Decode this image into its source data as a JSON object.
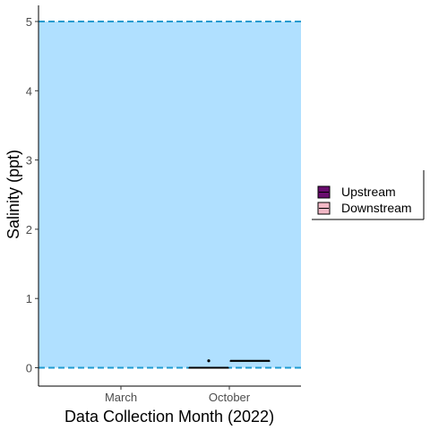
{
  "chart_data": {
    "type": "boxplot",
    "title": "",
    "xlabel": "Data Collection Month (2022)",
    "ylabel": "Salinity (ppt)",
    "categories": [
      "March",
      "October"
    ],
    "ylim": [
      -0.25,
      5.15
    ],
    "yticks": [
      0,
      1,
      2,
      3,
      4,
      5
    ],
    "grid": false,
    "legend_position": "right",
    "background_band": {
      "from": 0,
      "to": 5,
      "color": "#b0e0ff"
    },
    "reference_lines": [
      {
        "y": 0,
        "style": "dashed",
        "color": "#1f9bd0"
      },
      {
        "y": 5,
        "style": "dashed",
        "color": "#1f9bd0"
      }
    ],
    "series": [
      {
        "name": "Upstream",
        "color": "#6a0d6e",
        "boxes": [
          {
            "category": "October",
            "min": 0,
            "q1": 0,
            "median": 0,
            "q3": 0,
            "max": 0,
            "outliers": [
              0.1
            ]
          }
        ]
      },
      {
        "name": "Downstream",
        "color": "#f2b8c6",
        "boxes": [
          {
            "category": "October",
            "min": 0.1,
            "q1": 0.1,
            "median": 0.1,
            "q3": 0.1,
            "max": 0.1,
            "outliers": []
          }
        ]
      }
    ]
  }
}
